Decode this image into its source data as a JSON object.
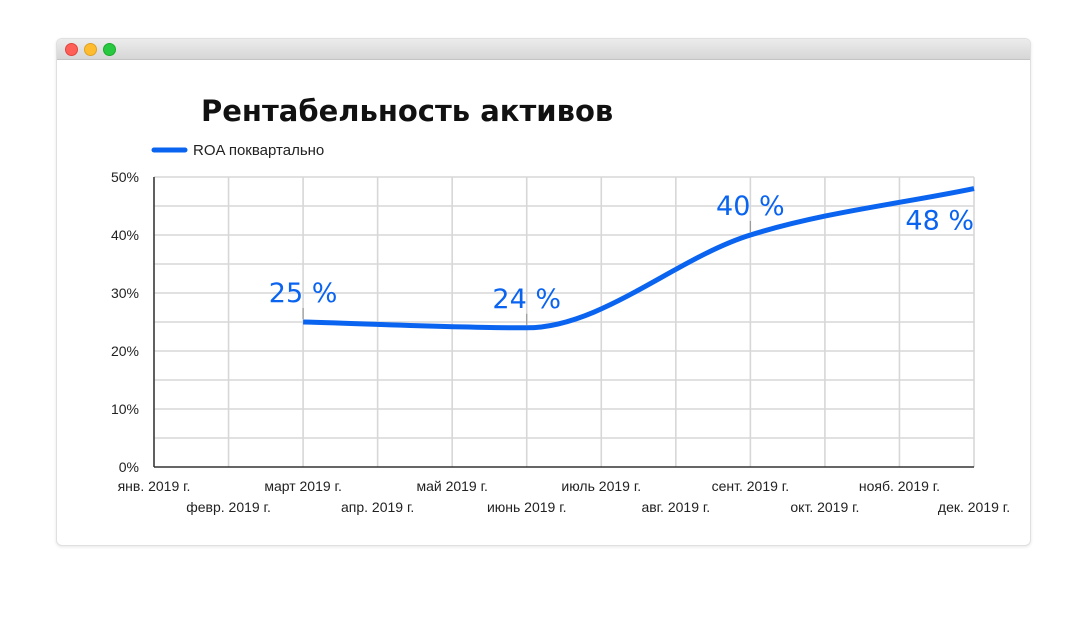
{
  "window": {
    "controls": [
      "close",
      "minimize",
      "maximize"
    ]
  },
  "chart_data": {
    "type": "line",
    "title": "Рентабельность активов",
    "categories": [
      "янв. 2019 г.",
      "февр. 2019 г.",
      "март 2019 г.",
      "апр. 2019 г.",
      "май 2019 г.",
      "июнь 2019 г.",
      "июль 2019 г.",
      "авг. 2019 г.",
      "сент. 2019 г.",
      "окт. 2019 г.",
      "нояб. 2019 г.",
      "дек. 2019 г."
    ],
    "series": [
      {
        "name": "ROA поквартально",
        "color": "#0a64f0",
        "points": [
          {
            "x": "март 2019 г.",
            "y": 25,
            "label": "25 %"
          },
          {
            "x": "июнь 2019 г.",
            "y": 24,
            "label": "24 %"
          },
          {
            "x": "сент. 2019 г.",
            "y": 40,
            "label": "40 %"
          },
          {
            "x": "дек. 2019 г.",
            "y": 48,
            "label": "48 %"
          }
        ]
      }
    ],
    "yticks": [
      "0%",
      "10%",
      "20%",
      "30%",
      "40%",
      "50%"
    ],
    "ylim": [
      0,
      50
    ],
    "grid": true,
    "legend": "top-left",
    "xlabel": "",
    "ylabel": ""
  }
}
